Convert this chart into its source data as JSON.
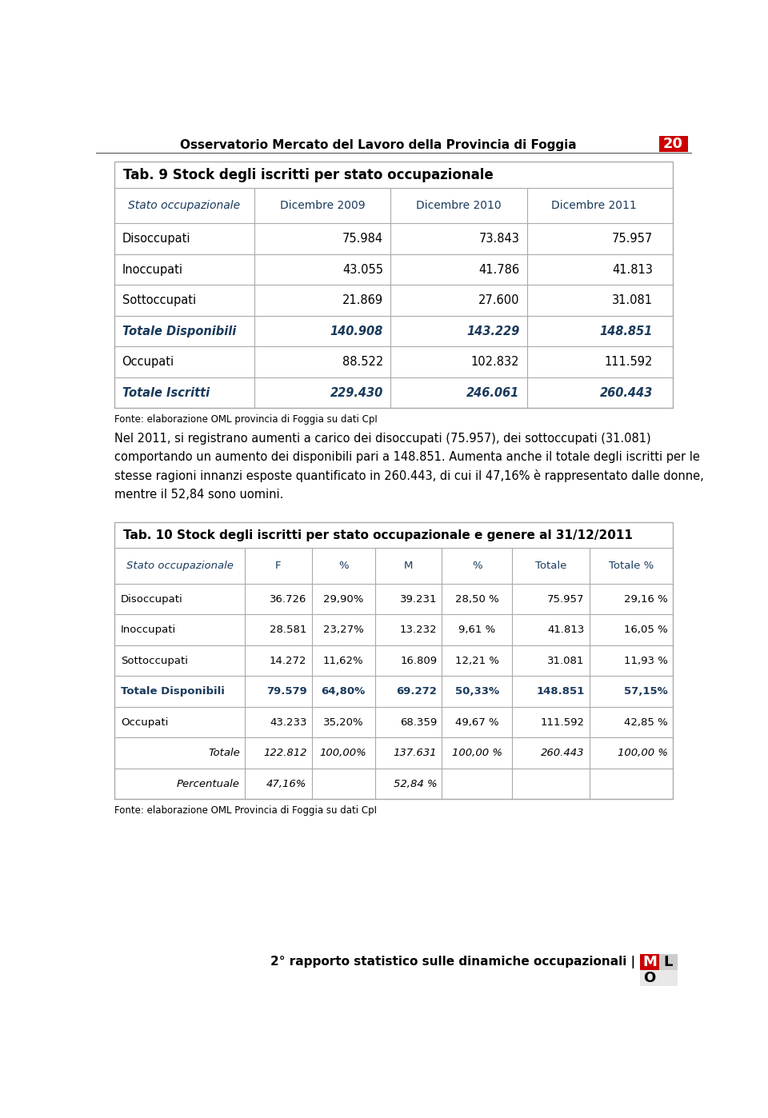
{
  "page_title": "Osservatorio Mercato del Lavoro della Provincia di Foggia",
  "page_number": "20",
  "footer_text": "2° rapporto statistico sulle dinamiche occupazionali |",
  "table1_title": "Tab. 9 Stock degli iscritti per stato occupazionale",
  "table1_headers": [
    "Stato occupazionale",
    "Dicembre 2009",
    "Dicembre 2010",
    "Dicembre 2011"
  ],
  "table1_rows": [
    [
      "Disoccupati",
      "75.984",
      "73.843",
      "75.957"
    ],
    [
      "Inoccupati",
      "43.055",
      "41.786",
      "41.813"
    ],
    [
      "Sottoccupati",
      "21.869",
      "27.600",
      "31.081"
    ],
    [
      "Totale Disponibili",
      "140.908",
      "143.229",
      "148.851"
    ],
    [
      "Occupati",
      "88.522",
      "102.832",
      "111.592"
    ],
    [
      "Totale Iscritti",
      "229.430",
      "246.061",
      "260.443"
    ]
  ],
  "table1_bold_rows": [
    3,
    5
  ],
  "table1_fonte": "Fonte: elaborazione OML provincia di Foggia su dati CpI",
  "para_lines": [
    "Nel 2011, si registrano aumenti a carico dei disoccupati (75.957), dei sottoccupati (31.081)",
    "comportando un aumento dei disponibili pari a 148.851. Aumenta anche il totale degli iscritti per le",
    "stesse ragioni innanzi esposte quantificato in 260.443, di cui il 47,16% è rappresentato dalle donne,",
    "mentre il 52,84 sono uomini."
  ],
  "table2_title": "Tab. 10 Stock degli iscritti per stato occupazionale e genere al 31/12/2011",
  "table2_headers": [
    "Stato occupazionale",
    "F",
    "%",
    "M",
    "%",
    "Totale",
    "Totale %"
  ],
  "table2_rows": [
    [
      "Disoccupati",
      "36.726",
      "29,90%",
      "39.231",
      "28,50 %",
      "75.957",
      "29,16 %"
    ],
    [
      "Inoccupati",
      "28.581",
      "23,27%",
      "13.232",
      "9,61 %",
      "41.813",
      "16,05 %"
    ],
    [
      "Sottoccupati",
      "14.272",
      "11,62%",
      "16.809",
      "12,21 %",
      "31.081",
      "11,93 %"
    ],
    [
      "Totale Disponibili",
      "79.579",
      "64,80%",
      "69.272",
      "50,33%",
      "148.851",
      "57,15%"
    ],
    [
      "Occupati",
      "43.233",
      "35,20%",
      "68.359",
      "49,67 %",
      "111.592",
      "42,85 %"
    ],
    [
      "Totale",
      "122.812",
      "100,00%",
      "137.631",
      "100,00 %",
      "260.443",
      "100,00 %"
    ],
    [
      "Percentuale",
      "47,16%",
      "",
      "52,84 %",
      "",
      "",
      ""
    ]
  ],
  "table2_bold_rows": [
    3
  ],
  "table2_italic_rows": [
    5,
    6
  ],
  "table2_fonte": "Fonte: elaborazione OML Provincia di Foggia su dati CpI",
  "header_color": "#1a3a5c",
  "bold_row_color": "#1a3a5c",
  "table_border_color": "#aaaaaa",
  "red_color": "#cc0000",
  "page_bg": "#ffffff"
}
